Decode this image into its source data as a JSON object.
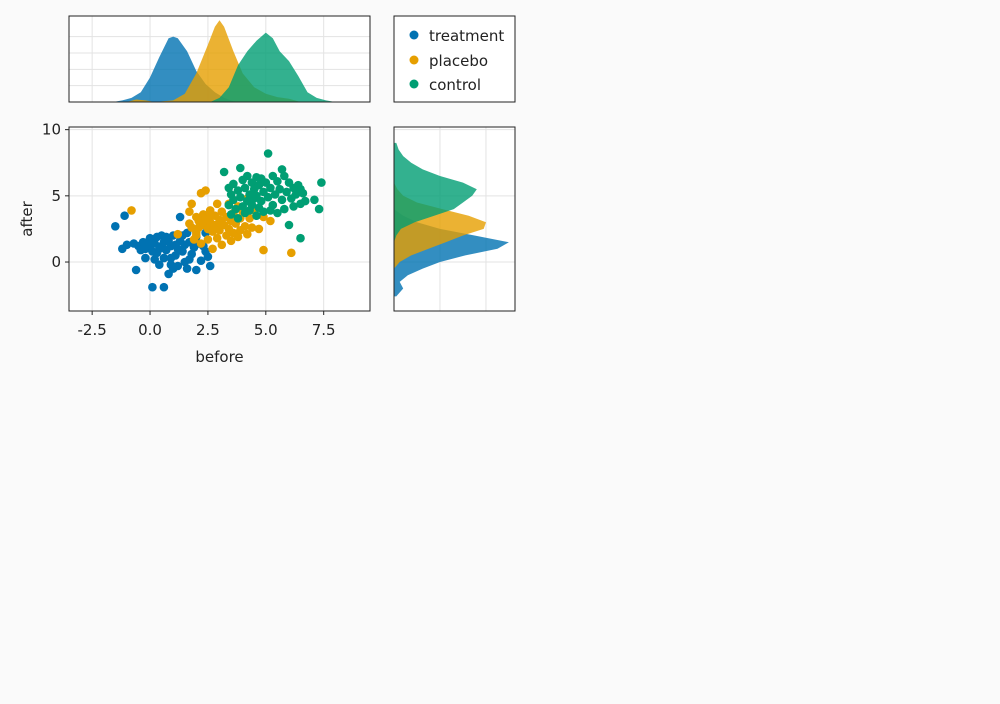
{
  "chart_data": {
    "type": "scatter",
    "title": "",
    "xlabel": "before",
    "ylabel": "after",
    "xlim": [
      -3.5,
      9.5
    ],
    "ylim": [
      -3.7,
      10.2
    ],
    "xticks": [
      -2.5,
      0.0,
      2.5,
      5.0,
      7.5
    ],
    "xtick_labels": [
      "-2.5",
      "0.0",
      "2.5",
      "5.0",
      "7.5"
    ],
    "yticks": [
      0,
      5,
      10
    ],
    "ytick_labels": [
      "0",
      "5",
      "10"
    ],
    "grid": true,
    "legend_position": "top-right",
    "series": [
      {
        "name": "treatment",
        "color": "#0072b2",
        "points": [
          [
            -1.5,
            2.7
          ],
          [
            -1.1,
            3.5
          ],
          [
            -1.2,
            1.0
          ],
          [
            -1.0,
            1.3
          ],
          [
            -0.7,
            1.4
          ],
          [
            -0.6,
            -0.6
          ],
          [
            -0.5,
            1.2
          ],
          [
            -0.3,
            1.5
          ],
          [
            -0.2,
            0.3
          ],
          [
            -0.2,
            1.0
          ],
          [
            -0.1,
            1.5
          ],
          [
            0.0,
            1.8
          ],
          [
            0.0,
            1.2
          ],
          [
            0.1,
            0.8
          ],
          [
            0.1,
            -1.9
          ],
          [
            0.2,
            1.4
          ],
          [
            0.3,
            1.9
          ],
          [
            0.3,
            0.7
          ],
          [
            0.4,
            1.0
          ],
          [
            0.4,
            -0.2
          ],
          [
            0.5,
            2.0
          ],
          [
            0.5,
            1.2
          ],
          [
            0.6,
            1.5
          ],
          [
            0.6,
            0.3
          ],
          [
            0.6,
            -1.9
          ],
          [
            0.7,
            1.9
          ],
          [
            0.7,
            0.9
          ],
          [
            0.8,
            1.6
          ],
          [
            0.8,
            -0.9
          ],
          [
            0.9,
            1.2
          ],
          [
            0.9,
            0.3
          ],
          [
            1.0,
            2.0
          ],
          [
            1.0,
            -0.5
          ],
          [
            1.1,
            1.3
          ],
          [
            1.1,
            0.5
          ],
          [
            1.2,
            1.0
          ],
          [
            1.2,
            -0.3
          ],
          [
            1.3,
            1.6
          ],
          [
            1.3,
            3.4
          ],
          [
            1.4,
            0.8
          ],
          [
            1.5,
            1.3
          ],
          [
            1.5,
            0.0
          ],
          [
            1.6,
            2.2
          ],
          [
            1.6,
            -0.5
          ],
          [
            1.7,
            1.5
          ],
          [
            1.8,
            0.6
          ],
          [
            1.9,
            1.1
          ],
          [
            2.0,
            1.9
          ],
          [
            2.0,
            -0.6
          ],
          [
            2.1,
            1.4
          ],
          [
            2.2,
            0.1
          ],
          [
            2.3,
            1.2
          ],
          [
            2.4,
            0.8
          ],
          [
            2.5,
            0.4
          ],
          [
            2.6,
            -0.3
          ],
          [
            1.4,
            2.0
          ],
          [
            0.2,
            0.2
          ],
          [
            0.9,
            -0.2
          ],
          [
            1.7,
            0.2
          ],
          [
            -0.4,
            0.9
          ],
          [
            2.4,
            2.2
          ],
          [
            1.9,
            1.6
          ]
        ]
      },
      {
        "name": "placebo",
        "color": "#e69f00",
        "points": [
          [
            -0.8,
            3.9
          ],
          [
            1.2,
            2.1
          ],
          [
            1.7,
            2.9
          ],
          [
            1.7,
            3.8
          ],
          [
            1.8,
            2.6
          ],
          [
            1.8,
            4.4
          ],
          [
            1.9,
            1.7
          ],
          [
            2.0,
            3.4
          ],
          [
            2.0,
            2.2
          ],
          [
            2.1,
            3.1
          ],
          [
            2.1,
            2.6
          ],
          [
            2.2,
            1.4
          ],
          [
            2.2,
            5.2
          ],
          [
            2.3,
            3.6
          ],
          [
            2.3,
            2.8
          ],
          [
            2.4,
            5.4
          ],
          [
            2.4,
            3.3
          ],
          [
            2.5,
            2.5
          ],
          [
            2.5,
            1.7
          ],
          [
            2.6,
            3.9
          ],
          [
            2.6,
            3.0
          ],
          [
            2.7,
            2.3
          ],
          [
            2.7,
            1.0
          ],
          [
            2.8,
            3.5
          ],
          [
            2.8,
            2.8
          ],
          [
            2.9,
            4.4
          ],
          [
            2.9,
            1.8
          ],
          [
            3.0,
            3.2
          ],
          [
            3.0,
            2.4
          ],
          [
            3.1,
            3.8
          ],
          [
            3.1,
            1.3
          ],
          [
            3.2,
            2.8
          ],
          [
            3.3,
            3.4
          ],
          [
            3.3,
            2.0
          ],
          [
            3.4,
            4.4
          ],
          [
            3.4,
            2.5
          ],
          [
            3.5,
            3.1
          ],
          [
            3.5,
            1.6
          ],
          [
            3.6,
            3.7
          ],
          [
            3.6,
            2.2
          ],
          [
            3.7,
            2.9
          ],
          [
            3.8,
            1.9
          ],
          [
            3.8,
            4.2
          ],
          [
            3.9,
            3.3
          ],
          [
            3.9,
            2.4
          ],
          [
            4.0,
            3.8
          ],
          [
            4.1,
            2.7
          ],
          [
            4.2,
            4.8
          ],
          [
            4.2,
            2.1
          ],
          [
            4.3,
            3.3
          ],
          [
            4.4,
            2.6
          ],
          [
            4.5,
            3.9
          ],
          [
            4.7,
            2.5
          ],
          [
            4.9,
            3.4
          ],
          [
            4.9,
            0.9
          ],
          [
            5.2,
            3.1
          ],
          [
            6.1,
            0.7
          ],
          [
            2.0,
            2.0
          ],
          [
            3.1,
            2.9
          ],
          [
            2.6,
            3.6
          ]
        ]
      },
      {
        "name": "control",
        "color": "#009e73",
        "points": [
          [
            3.2,
            6.8
          ],
          [
            3.4,
            5.6
          ],
          [
            3.4,
            4.3
          ],
          [
            3.5,
            5.1
          ],
          [
            3.5,
            3.6
          ],
          [
            3.6,
            5.9
          ],
          [
            3.6,
            4.7
          ],
          [
            3.7,
            4.0
          ],
          [
            3.8,
            5.4
          ],
          [
            3.8,
            3.3
          ],
          [
            3.9,
            7.1
          ],
          [
            3.9,
            4.9
          ],
          [
            4.0,
            6.2
          ],
          [
            4.0,
            4.2
          ],
          [
            4.1,
            5.6
          ],
          [
            4.1,
            3.7
          ],
          [
            4.2,
            6.5
          ],
          [
            4.2,
            4.6
          ],
          [
            4.3,
            5.1
          ],
          [
            4.3,
            3.9
          ],
          [
            4.4,
            6.0
          ],
          [
            4.4,
            4.3
          ],
          [
            4.5,
            5.5
          ],
          [
            4.5,
            4.8
          ],
          [
            4.6,
            6.4
          ],
          [
            4.6,
            3.5
          ],
          [
            4.7,
            5.8
          ],
          [
            4.7,
            4.1
          ],
          [
            4.8,
            6.3
          ],
          [
            4.8,
            4.6
          ],
          [
            4.9,
            5.3
          ],
          [
            4.9,
            3.8
          ],
          [
            5.0,
            6.0
          ],
          [
            5.1,
            8.2
          ],
          [
            5.1,
            4.9
          ],
          [
            5.2,
            5.6
          ],
          [
            5.2,
            3.9
          ],
          [
            5.3,
            6.5
          ],
          [
            5.3,
            4.3
          ],
          [
            5.4,
            5.1
          ],
          [
            5.5,
            6.1
          ],
          [
            5.5,
            3.7
          ],
          [
            5.6,
            5.5
          ],
          [
            5.7,
            7.0
          ],
          [
            5.7,
            4.7
          ],
          [
            5.8,
            6.5
          ],
          [
            5.8,
            4.0
          ],
          [
            5.9,
            5.3
          ],
          [
            6.0,
            6.0
          ],
          [
            6.0,
            2.8
          ],
          [
            6.1,
            4.8
          ],
          [
            6.2,
            5.6
          ],
          [
            6.2,
            4.2
          ],
          [
            6.3,
            5.1
          ],
          [
            6.4,
            5.8
          ],
          [
            6.5,
            4.4
          ],
          [
            6.5,
            1.8
          ],
          [
            6.6,
            5.2
          ],
          [
            6.7,
            4.6
          ],
          [
            7.1,
            4.7
          ],
          [
            7.3,
            4.0
          ],
          [
            7.4,
            6.0
          ],
          [
            6.5,
            5.5
          ],
          [
            4.6,
            5.0
          ]
        ]
      }
    ],
    "marginal_x_density": {
      "treatment": {
        "color": "#0072b2",
        "x": [
          -1.6,
          -1.2,
          -0.8,
          -0.4,
          0.0,
          0.4,
          0.8,
          1.0,
          1.2,
          1.6,
          2.0,
          2.4,
          2.8,
          3.2,
          3.6,
          4.0
        ],
        "density": [
          0.0,
          0.02,
          0.05,
          0.12,
          0.3,
          0.55,
          0.78,
          0.8,
          0.78,
          0.62,
          0.38,
          0.22,
          0.12,
          0.05,
          0.01,
          0.0
        ]
      },
      "placebo": {
        "color": "#e69f00",
        "x": [
          -1.0,
          -0.6,
          -0.2,
          0.2,
          1.0,
          1.5,
          2.0,
          2.5,
          2.8,
          3.0,
          3.2,
          3.6,
          4.0,
          4.5,
          5.0,
          5.5,
          6.0,
          6.5
        ],
        "density": [
          0.0,
          0.03,
          0.02,
          0.0,
          0.02,
          0.1,
          0.35,
          0.7,
          0.92,
          1.0,
          0.92,
          0.62,
          0.35,
          0.18,
          0.1,
          0.06,
          0.04,
          0.0
        ]
      },
      "control": {
        "color": "#009e73",
        "x": [
          2.6,
          3.0,
          3.4,
          3.8,
          4.2,
          4.6,
          5.0,
          5.3,
          5.6,
          6.0,
          6.4,
          6.8,
          7.2,
          7.6,
          8.0
        ],
        "density": [
          0.0,
          0.05,
          0.18,
          0.45,
          0.62,
          0.75,
          0.85,
          0.78,
          0.62,
          0.5,
          0.32,
          0.12,
          0.05,
          0.02,
          0.0
        ]
      }
    },
    "marginal_y_density": {
      "treatment": {
        "color": "#0072b2",
        "y": [
          -2.6,
          -2.0,
          -1.5,
          -1.0,
          -0.5,
          0.0,
          0.5,
          1.0,
          1.5,
          2.0,
          2.5,
          3.0,
          3.5,
          4.0
        ],
        "density": [
          0.02,
          0.08,
          0.05,
          0.12,
          0.25,
          0.4,
          0.62,
          0.9,
          1.0,
          0.7,
          0.4,
          0.2,
          0.08,
          0.0
        ]
      },
      "placebo": {
        "color": "#e69f00",
        "y": [
          -0.5,
          0.0,
          0.5,
          1.0,
          1.5,
          2.0,
          2.5,
          3.0,
          3.5,
          4.0,
          4.5,
          5.0,
          5.5,
          6.0
        ],
        "density": [
          0.0,
          0.05,
          0.15,
          0.3,
          0.45,
          0.6,
          0.78,
          0.8,
          0.65,
          0.42,
          0.2,
          0.08,
          0.03,
          0.0
        ]
      },
      "control": {
        "color": "#009e73",
        "y": [
          1.5,
          2.0,
          2.5,
          3.0,
          3.5,
          4.0,
          4.5,
          5.0,
          5.5,
          6.0,
          6.5,
          7.0,
          7.5,
          8.0,
          8.5,
          9.0
        ],
        "density": [
          0.0,
          0.02,
          0.06,
          0.18,
          0.35,
          0.52,
          0.6,
          0.68,
          0.72,
          0.6,
          0.4,
          0.25,
          0.15,
          0.08,
          0.04,
          0.02
        ]
      }
    }
  }
}
